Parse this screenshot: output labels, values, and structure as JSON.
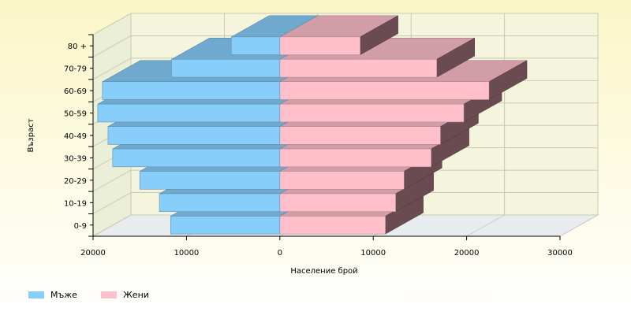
{
  "chart_data": {
    "type": "bar",
    "orientation": "horizontal",
    "layout": "population-pyramid",
    "ylabel": "Възраст",
    "xlabel": "Население брой",
    "categories": [
      "0-9",
      "10-19",
      "20-29",
      "30-39",
      "40-49",
      "50-59",
      "60-69",
      "70-79",
      "80 +"
    ],
    "series": [
      {
        "name": "Мъже",
        "color": "#87cefa",
        "direction": "left",
        "values": [
          11700,
          12900,
          15000,
          17900,
          18400,
          19500,
          19000,
          11600,
          5200
        ]
      },
      {
        "name": "Жени",
        "color": "#ffc0cb",
        "direction": "right",
        "values": [
          11300,
          12400,
          13300,
          16200,
          17200,
          19700,
          22400,
          16800,
          8600
        ]
      }
    ],
    "xticks": [
      "20000",
      "10000",
      "0",
      "10000",
      "20000",
      "30000"
    ],
    "xlim": [
      -20000,
      30000
    ],
    "grid": true,
    "legend_position": "bottom-left"
  }
}
